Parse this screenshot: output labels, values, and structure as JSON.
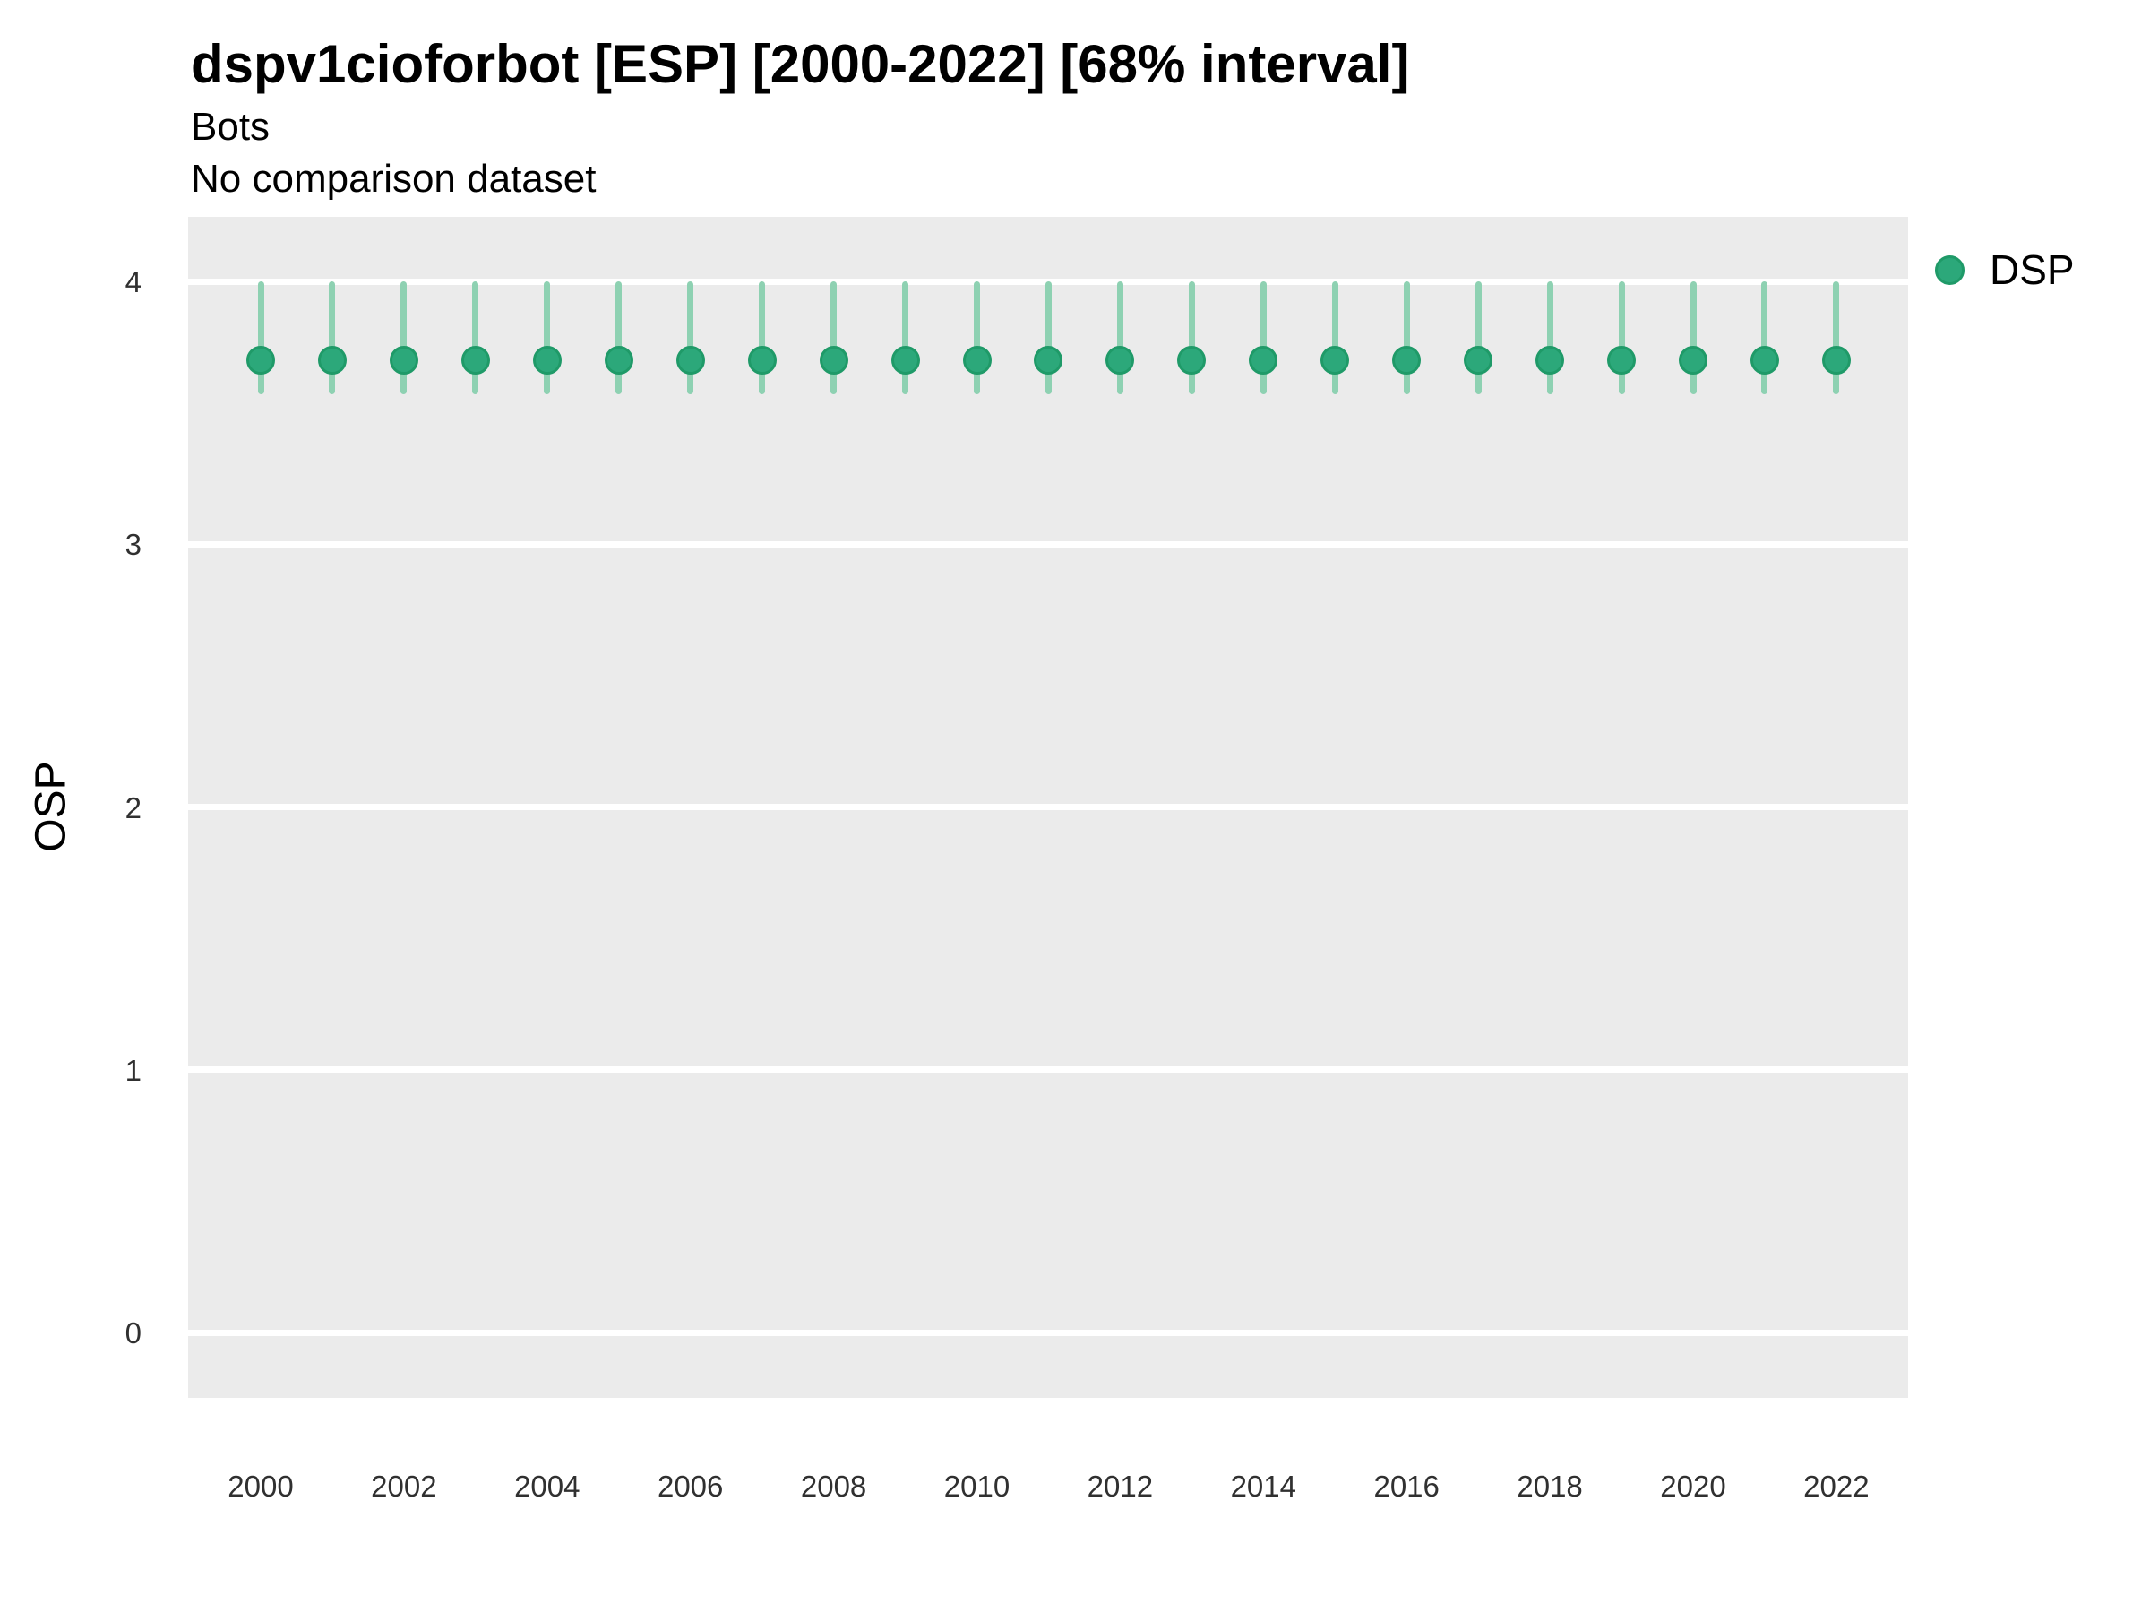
{
  "header": {
    "title": "dspv1cioforbot [ESP] [2000-2022] [68% interval]",
    "subtitle": "Bots",
    "comparison_note": "No comparison dataset"
  },
  "legend": {
    "items": [
      {
        "label": "DSP",
        "marker": "circle-icon",
        "color": "#2ca87a"
      }
    ]
  },
  "colors": {
    "point_fill": "#2ca87a",
    "point_border": "#1f9a68",
    "interval_line": "#8ed1b2",
    "panel_background": "#ebebeb",
    "gridline": "#ffffff",
    "title_text": "#000000",
    "tick_text": "#303030"
  },
  "chart_data": {
    "type": "pointrange",
    "title": "dspv1cioforbot [ESP] [2000-2022] [68% interval]",
    "subtitle": "Bots",
    "annotation": "No comparison dataset",
    "xlabel": "",
    "ylabel": "OSP",
    "x": [
      2000,
      2001,
      2002,
      2003,
      2004,
      2005,
      2006,
      2007,
      2008,
      2009,
      2010,
      2011,
      2012,
      2013,
      2014,
      2015,
      2016,
      2017,
      2018,
      2019,
      2020,
      2021,
      2022
    ],
    "series": [
      {
        "name": "DSP",
        "values": [
          3.7,
          3.7,
          3.7,
          3.7,
          3.7,
          3.7,
          3.7,
          3.7,
          3.7,
          3.7,
          3.7,
          3.7,
          3.7,
          3.7,
          3.7,
          3.7,
          3.7,
          3.7,
          3.7,
          3.7,
          3.7,
          3.7,
          3.7
        ],
        "lower": [
          3.57,
          3.57,
          3.57,
          3.57,
          3.57,
          3.57,
          3.57,
          3.57,
          3.57,
          3.57,
          3.57,
          3.57,
          3.57,
          3.57,
          3.57,
          3.57,
          3.57,
          3.57,
          3.57,
          3.57,
          3.57,
          3.57,
          3.57
        ],
        "upper": [
          4.0,
          4.0,
          4.0,
          4.0,
          4.0,
          4.0,
          4.0,
          4.0,
          4.0,
          4.0,
          4.0,
          4.0,
          4.0,
          4.0,
          4.0,
          4.0,
          4.0,
          4.0,
          4.0,
          4.0,
          4.0,
          4.0,
          4.0
        ]
      }
    ],
    "interval_label": "68% interval",
    "yticks": [
      0,
      1,
      2,
      3,
      4
    ],
    "xticks": [
      2000,
      2002,
      2004,
      2006,
      2008,
      2010,
      2012,
      2014,
      2016,
      2018,
      2020,
      2022
    ],
    "ylim": [
      -0.25,
      4.25
    ],
    "xlim": [
      1999,
      2023
    ],
    "grid": "horizontal-major-only",
    "legend_position": "right-top"
  }
}
